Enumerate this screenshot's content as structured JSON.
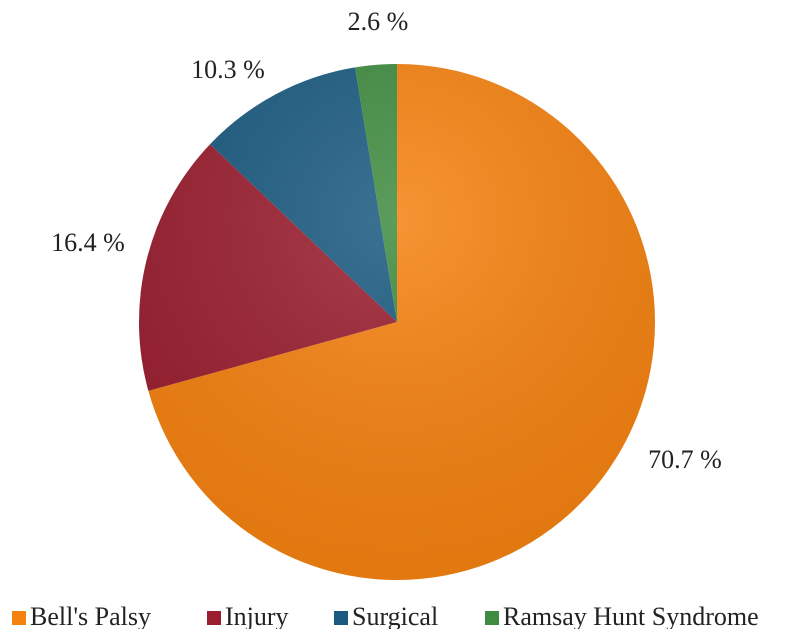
{
  "chart_data": {
    "type": "pie",
    "categories": [
      "Bell's Palsy",
      "Injury",
      "Surgical",
      "Ramsay Hunt Syndrome"
    ],
    "values": [
      70.7,
      16.4,
      10.3,
      2.6
    ],
    "value_labels": [
      "70.7 %",
      "16.4 %",
      "10.3 %",
      "2.6 %"
    ],
    "colors": [
      "#f5810f",
      "#9a1e2f",
      "#1a5a80",
      "#3f8b3f"
    ],
    "legend": "bottom"
  }
}
